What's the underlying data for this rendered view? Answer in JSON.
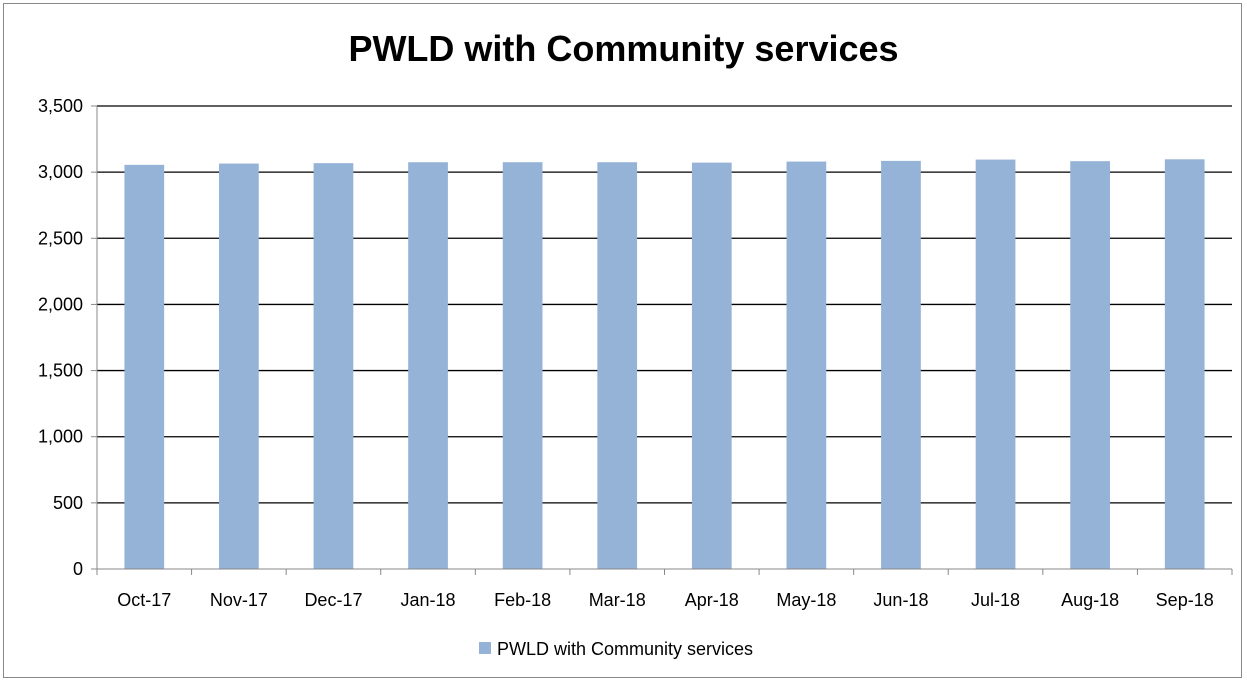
{
  "chart_data": {
    "type": "bar",
    "title": "PWLD with Community services",
    "categories": [
      "Oct-17",
      "Nov-17",
      "Dec-17",
      "Jan-18",
      "Feb-18",
      "Mar-18",
      "Apr-18",
      "May-18",
      "Jun-18",
      "Jul-18",
      "Aug-18",
      "Sep-18"
    ],
    "series": [
      {
        "name": "PWLD with Community services",
        "values": [
          3055,
          3065,
          3068,
          3075,
          3075,
          3075,
          3072,
          3080,
          3085,
          3095,
          3083,
          3097
        ]
      }
    ],
    "ylim": [
      0,
      3500
    ],
    "yticks": [
      0,
      500,
      1000,
      1500,
      2000,
      2500,
      3000,
      3500
    ],
    "ytick_labels": [
      "0",
      "500",
      "1,000",
      "1,500",
      "2,000",
      "2,500",
      "3,000",
      "3,500"
    ],
    "xlabel": "",
    "ylabel": "",
    "grid": true,
    "legend_position": "bottom",
    "colors": {
      "bar": "#95B3D7",
      "grid": "#000000",
      "frame": "#888888"
    }
  }
}
